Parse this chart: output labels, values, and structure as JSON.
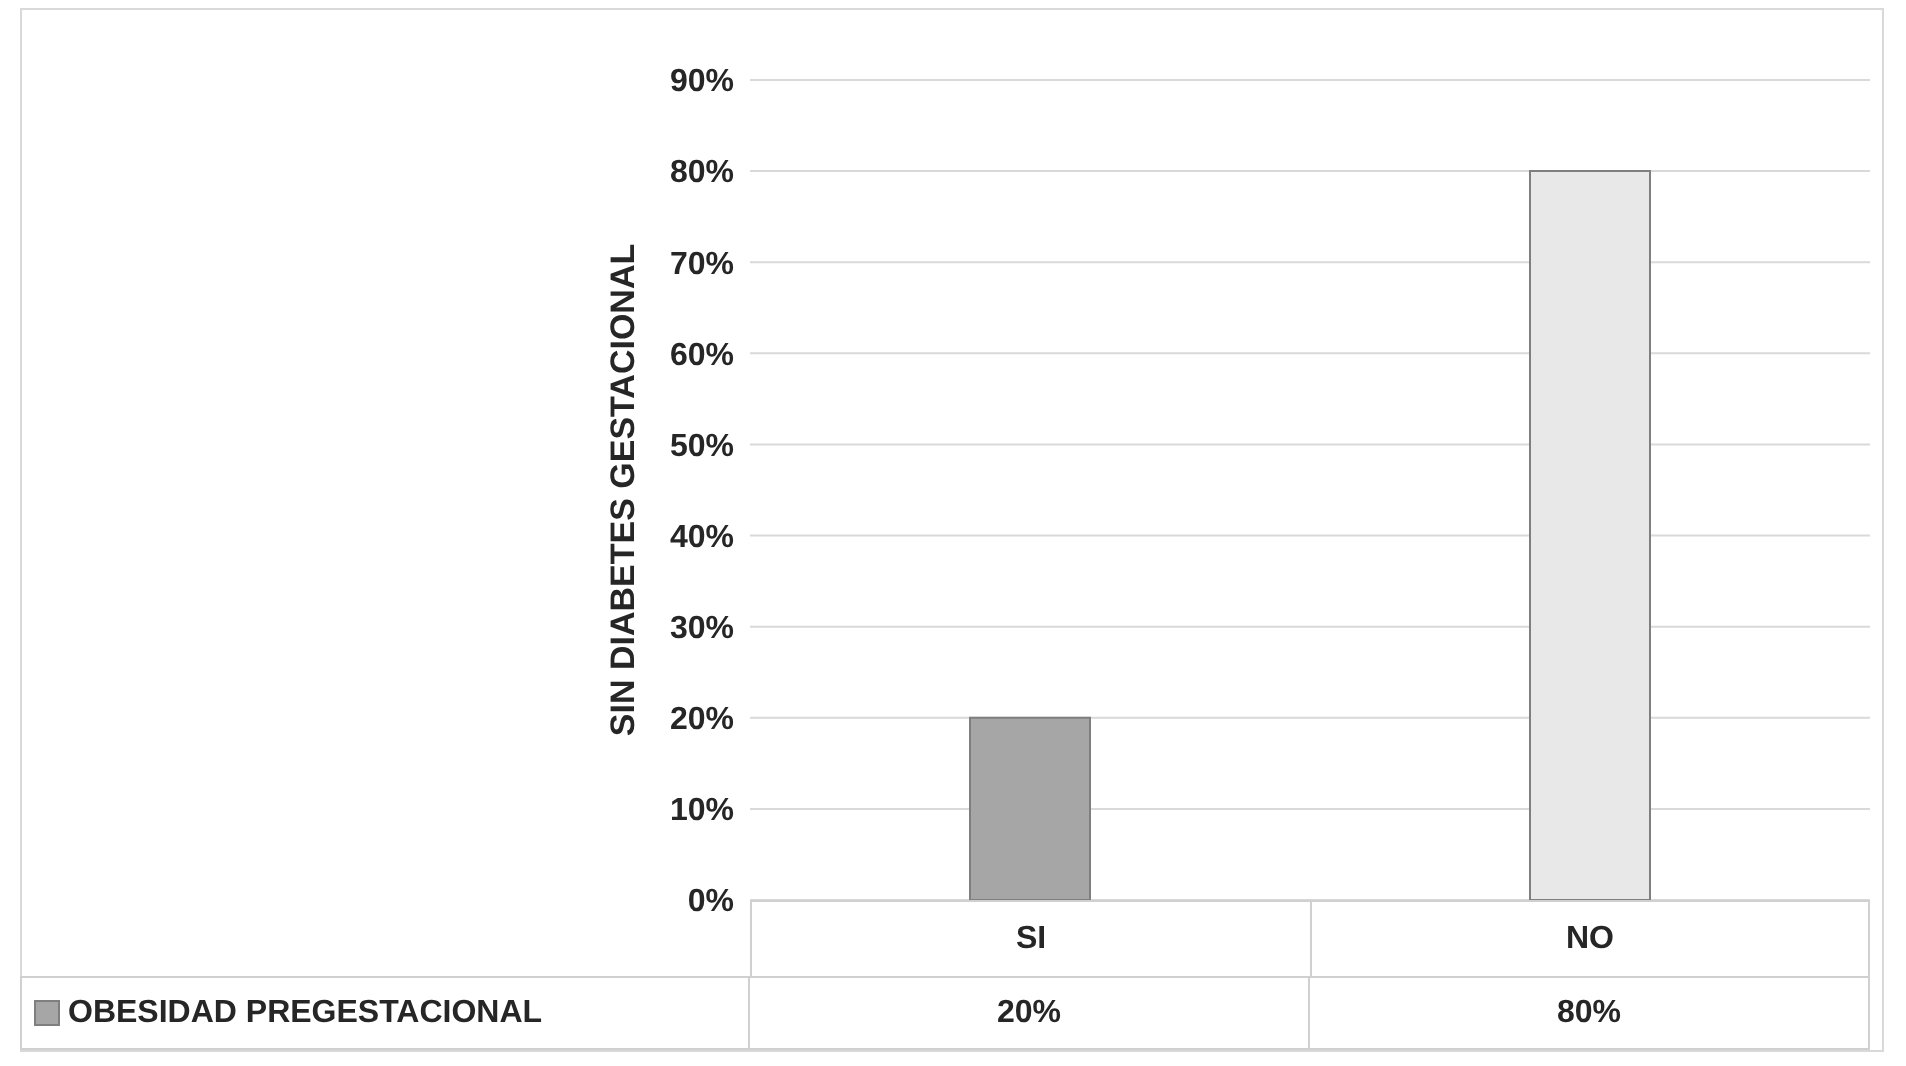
{
  "chart_data": {
    "type": "bar",
    "ylabel": "SIN DIABETES GESTACIONAL",
    "categories": [
      "SI",
      "NO"
    ],
    "series": [
      {
        "name": "OBESIDAD PREGESTACIONAL",
        "colors": [
          "#a6a6a6",
          "#e8e8e8"
        ],
        "values": [
          20,
          80
        ],
        "value_labels": [
          "20%",
          "80%"
        ]
      }
    ],
    "ylim": [
      0,
      90
    ],
    "yticks": [
      {
        "value": 0,
        "label": "0%"
      },
      {
        "value": 10,
        "label": "10%"
      },
      {
        "value": 20,
        "label": "20%"
      },
      {
        "value": 30,
        "label": "30%"
      },
      {
        "value": 40,
        "label": "40%"
      },
      {
        "value": 50,
        "label": "50%"
      },
      {
        "value": 60,
        "label": "60%"
      },
      {
        "value": 70,
        "label": "70%"
      },
      {
        "value": 80,
        "label": "80%"
      },
      {
        "value": 90,
        "label": "90%"
      }
    ],
    "grid": "y",
    "legend": "bottom"
  }
}
